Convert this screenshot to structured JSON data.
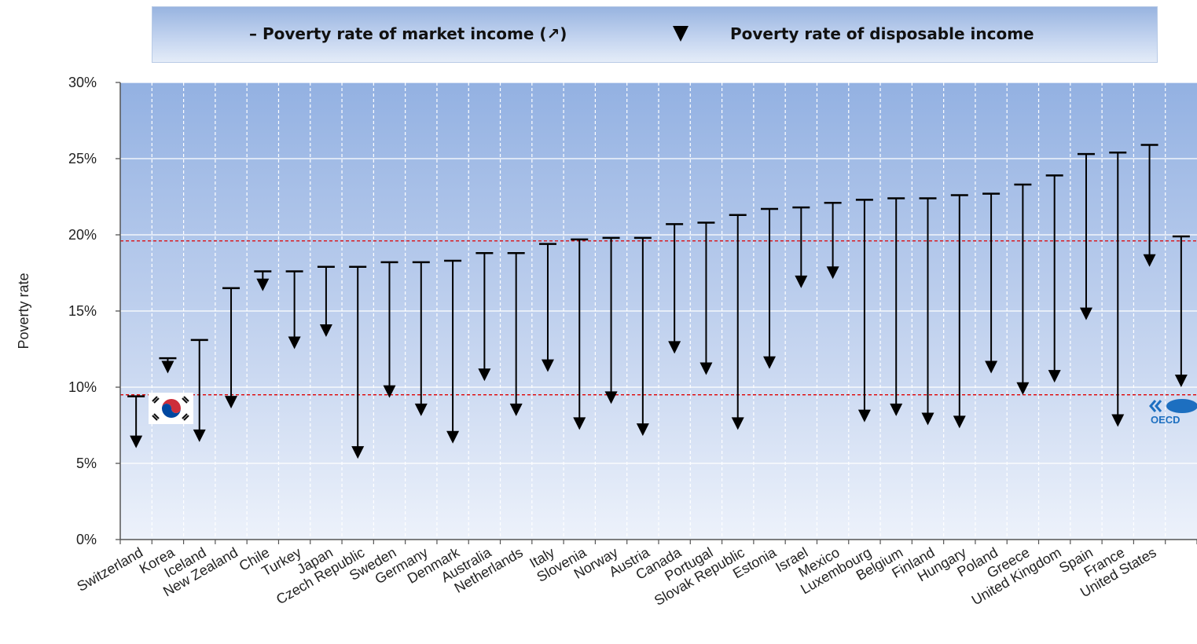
{
  "legend": {
    "market_label": "– Poverty rate of market income (↗)",
    "disposable_label": "Poverty rate of disposable income"
  },
  "chart_data": {
    "type": "range-arrow",
    "ylabel": "Poverty rate",
    "ylim": [
      0,
      30
    ],
    "yticks": [
      "0%",
      "5%",
      "10%",
      "15%",
      "20%",
      "25%",
      "30%"
    ],
    "ytick_values": [
      0,
      5,
      10,
      15,
      20,
      25,
      30
    ],
    "grid": true,
    "legend_position": "top",
    "reference_lines": [
      9.5,
      19.6
    ],
    "categories": [
      "Switzerland",
      "Korea",
      "Iceland",
      "New Zealand",
      "Chile",
      "Turkey",
      "Japan",
      "Czech Republic",
      "Sweden",
      "Germany",
      "Denmark",
      "Australia",
      "Netherlands",
      "Italy",
      "Slovenia",
      "Norway",
      "Austria",
      "Canada",
      "Portugal",
      "Slovak Republic",
      "Estonia",
      "Israel",
      "Mexico",
      "Luxembourg",
      "Belgium",
      "Finland",
      "Hungary",
      "Poland",
      "Greece",
      "United Kingdom",
      "Spain",
      "France",
      "United States",
      "OECD"
    ],
    "series": [
      {
        "name": "Poverty rate of market income",
        "values": [
          9.4,
          11.9,
          13.1,
          16.5,
          17.6,
          17.6,
          17.9,
          17.9,
          18.2,
          18.2,
          18.3,
          18.8,
          18.8,
          19.4,
          19.7,
          19.8,
          19.8,
          20.7,
          20.8,
          21.3,
          21.7,
          21.8,
          22.1,
          22.3,
          22.4,
          22.4,
          22.6,
          22.7,
          23.3,
          23.9,
          25.3,
          25.4,
          25.9,
          19.9
        ]
      },
      {
        "name": "Poverty rate of disposable income",
        "values": [
          6.0,
          10.9,
          6.4,
          8.6,
          16.3,
          12.5,
          13.3,
          5.3,
          9.3,
          8.1,
          6.3,
          10.4,
          8.1,
          11.0,
          7.2,
          8.9,
          6.8,
          12.2,
          10.8,
          7.2,
          11.2,
          16.5,
          17.1,
          7.7,
          8.1,
          7.5,
          7.3,
          10.9,
          9.5,
          10.3,
          14.4,
          7.4,
          17.9,
          10.0
        ]
      }
    ]
  },
  "decorations": {
    "korea_flag_category": "Korea",
    "oecd_logo_text": "OECD"
  }
}
